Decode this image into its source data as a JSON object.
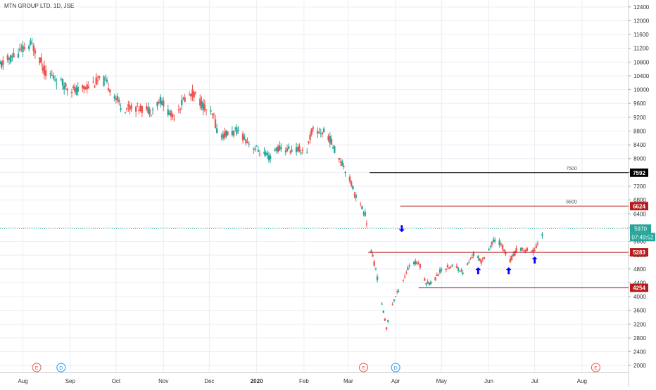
{
  "header": {
    "symbol_title": "MTN GROUP LTD, 1D, JSE"
  },
  "colors": {
    "up": "#26a69a",
    "down": "#ef5350",
    "grid": "#e9eef3",
    "current_line": "#26a69a",
    "current_label_bg": "#26a69a",
    "countdown_bg": "#26a69a",
    "resistance_black": "#000000",
    "level_red": "#b71c1c",
    "arrow": "#0000ff",
    "event_e": "#ef5350",
    "event_d": "#2196f3",
    "axis_text": "#333333"
  },
  "chart_data": {
    "type": "candlestick",
    "title": "MTN GROUP LTD, 1D, JSE",
    "ylim": [
      1800,
      12600
    ],
    "y_ticks": [
      2000,
      2400,
      2800,
      3200,
      3600,
      4000,
      4400,
      4800,
      5200,
      5600,
      6000,
      6400,
      6800,
      7200,
      7600,
      8000,
      8400,
      8800,
      9200,
      9600,
      10000,
      10400,
      10800,
      11200,
      11600,
      12000,
      12400
    ],
    "x_ticks": [
      "Aug",
      "Sep",
      "Oct",
      "Nov",
      "Dec",
      "2020",
      "Feb",
      "Mar",
      "Apr",
      "May",
      "Jun",
      "Jul",
      "Aug"
    ],
    "x_tick_dates": [
      "2019-08-01",
      "2019-09-01",
      "2019-10-01",
      "2019-11-01",
      "2019-12-01",
      "2020-01-01",
      "2020-02-01",
      "2020-03-01",
      "2020-04-01",
      "2020-05-01",
      "2020-06-01",
      "2020-07-01",
      "2020-08-01"
    ],
    "x_range": [
      "2019-07-17",
      "2020-08-31"
    ],
    "grid": true,
    "price_path": [
      [
        "2019-07-17",
        10700
      ],
      [
        "2019-07-25",
        10950
      ],
      [
        "2019-07-30",
        11100
      ],
      [
        "2019-08-06",
        11300
      ],
      [
        "2019-08-10",
        11150
      ],
      [
        "2019-08-15",
        10550
      ],
      [
        "2019-08-26",
        10200
      ],
      [
        "2019-09-05",
        9950
      ],
      [
        "2019-09-12",
        10100
      ],
      [
        "2019-09-22",
        10300
      ],
      [
        "2019-09-28",
        10000
      ],
      [
        "2019-10-05",
        9450
      ],
      [
        "2019-10-13",
        9500
      ],
      [
        "2019-10-24",
        9400
      ],
      [
        "2019-10-30",
        9700
      ],
      [
        "2019-11-07",
        9200
      ],
      [
        "2019-11-15",
        9750
      ],
      [
        "2019-11-21",
        9900
      ],
      [
        "2019-11-30",
        9350
      ],
      [
        "2019-12-04",
        9200
      ],
      [
        "2019-12-07",
        8650
      ],
      [
        "2019-12-20",
        8800
      ],
      [
        "2019-12-28",
        8400
      ],
      [
        "2020-01-10",
        8000
      ],
      [
        "2020-01-14",
        8300
      ],
      [
        "2020-01-24",
        8250
      ],
      [
        "2020-02-03",
        8250
      ],
      [
        "2020-02-06",
        8800
      ],
      [
        "2020-02-16",
        8750
      ],
      [
        "2020-02-20",
        8350
      ],
      [
        "2020-02-27",
        7800
      ],
      [
        "2020-03-01",
        7500
      ],
      [
        "2020-03-08",
        6700
      ],
      [
        "2020-03-12",
        6400
      ],
      [
        "2020-03-16",
        5300
      ],
      [
        "2020-03-19",
        4800
      ],
      [
        "2020-03-22",
        4000
      ],
      [
        "2020-03-26",
        3100
      ],
      [
        "2020-03-30",
        3800
      ],
      [
        "2020-04-04",
        4300
      ],
      [
        "2020-04-10",
        4900
      ],
      [
        "2020-04-16",
        5000
      ],
      [
        "2020-04-21",
        4400
      ],
      [
        "2020-04-25",
        4400
      ],
      [
        "2020-05-01",
        4800
      ],
      [
        "2020-05-10",
        4900
      ],
      [
        "2020-05-15",
        4700
      ],
      [
        "2020-05-23",
        5300
      ],
      [
        "2020-05-27",
        5000
      ],
      [
        "2020-06-01",
        5400
      ],
      [
        "2020-06-06",
        5700
      ],
      [
        "2020-06-12",
        5300
      ],
      [
        "2020-06-15",
        5050
      ],
      [
        "2020-06-20",
        5400
      ],
      [
        "2020-06-30",
        5300
      ],
      [
        "2020-07-06",
        5800
      ]
    ],
    "horizontal_levels": [
      {
        "price": 7592,
        "color": "#000000",
        "label": "7500",
        "start": "2020-03-15",
        "axis_label": "7592"
      },
      {
        "price": 6624,
        "color": "#b71c1c",
        "label": "6600",
        "start": "2020-04-04",
        "axis_label": "6624"
      },
      {
        "price": 5283,
        "color": "#b71c1c",
        "label": "",
        "start": "2020-03-14",
        "axis_label": "5283"
      },
      {
        "price": 4254,
        "color": "#b71c1c",
        "label": "",
        "start": "2020-04-16",
        "axis_label": "4254"
      }
    ],
    "current_price": {
      "value": 5970,
      "label": "5970",
      "countdown": "07:49:52"
    },
    "arrows": [
      {
        "date": "2020-04-05",
        "price": 5970,
        "direction": "down"
      },
      {
        "date": "2020-05-25",
        "price": 4750,
        "direction": "up"
      },
      {
        "date": "2020-06-14",
        "price": 4750,
        "direction": "up"
      },
      {
        "date": "2020-07-01",
        "price": 5060,
        "direction": "up"
      }
    ],
    "events": [
      {
        "date": "2019-08-10",
        "letter": "E",
        "kind": "earnings"
      },
      {
        "date": "2019-08-26",
        "letter": "D",
        "kind": "dividend"
      },
      {
        "date": "2020-03-11",
        "letter": "E",
        "kind": "earnings"
      },
      {
        "date": "2020-04-01",
        "letter": "D",
        "kind": "dividend"
      },
      {
        "date": "2020-08-10",
        "letter": "E",
        "kind": "earnings"
      }
    ]
  }
}
